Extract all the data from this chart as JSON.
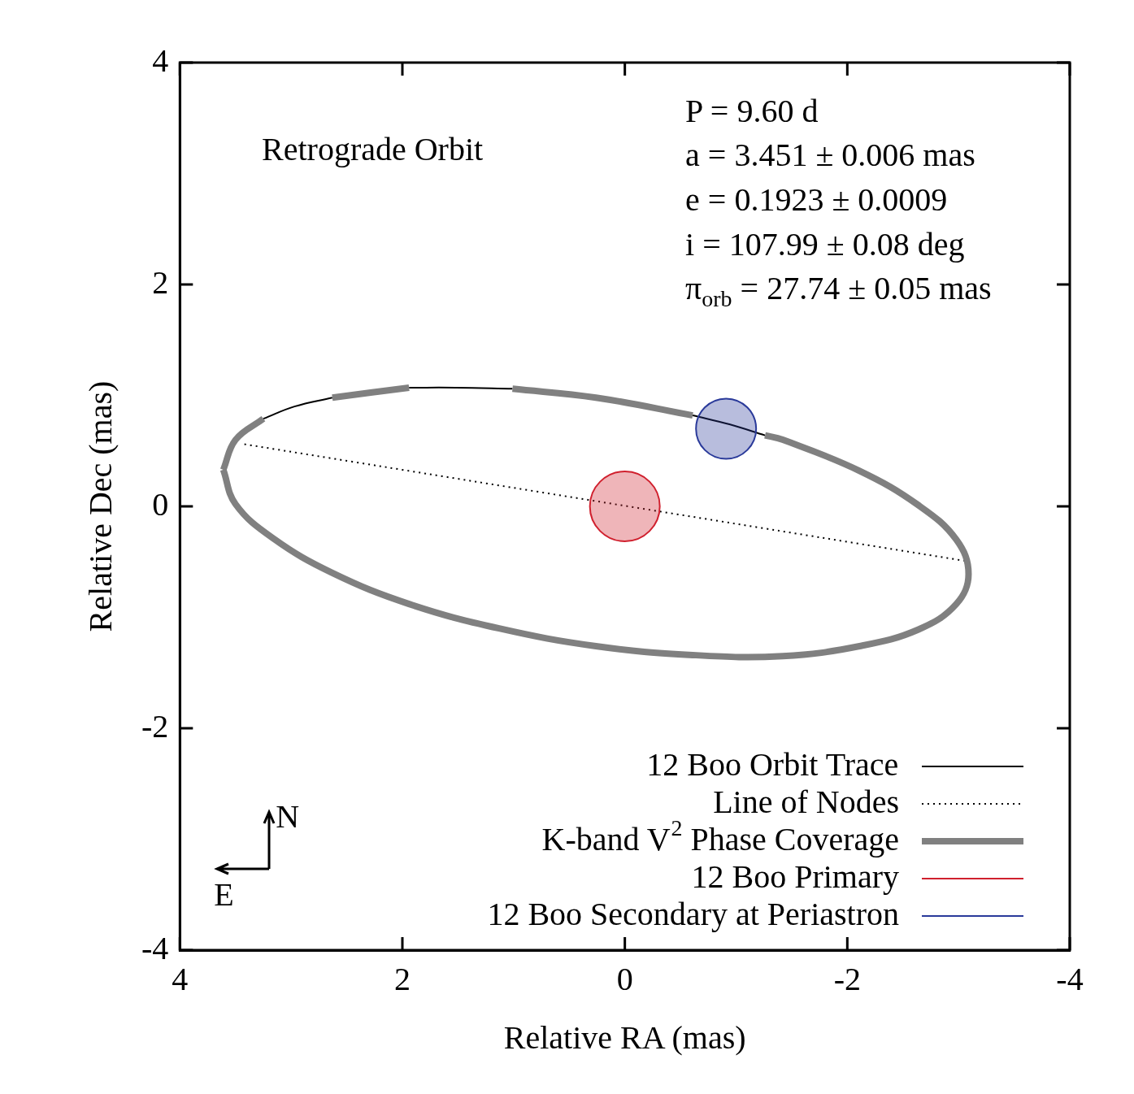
{
  "chart_data": {
    "type": "line",
    "xlabel": "Relative RA (mas)",
    "ylabel": "Relative Dec (mas)",
    "xlim": [
      4,
      -4
    ],
    "ylim": [
      -4,
      4
    ],
    "xticks": [
      4,
      2,
      0,
      -2,
      -4
    ],
    "yticks": [
      -4,
      -2,
      0,
      2,
      4
    ],
    "grid": false,
    "legend": "bottom right",
    "annotations": [
      "Retrograde Orbit",
      "P = 9.60 d",
      "a = 3.451 ± 0.006 mas",
      "e = 0.1923 ± 0.0009",
      "i = 107.99 ± 0.08 deg",
      "π$_{orb}$ = 27.74 ± 0.05 mas",
      "N",
      "E"
    ],
    "series": [
      {
        "name": "12 Boo Orbit Trace",
        "marker": "none",
        "line_style": "solid",
        "color": "#000000",
        "x": [
          3.25,
          2.97,
          2.63,
          2.3,
          1.94,
          1.52,
          1.01,
          0.2,
          -0.61,
          -0.94,
          -1.26
        ],
        "values": [
          0.79,
          0.9,
          0.98,
          null,
          1.07,
          1.07,
          1.06,
          null,
          0.82,
          0.74,
          0.64
        ]
      },
      {
        "name": "Line of Nodes",
        "marker": "none",
        "line_style": "dotted",
        "color": "#000000",
        "x": [
          3.42,
          -3.05
        ],
        "values": [
          0.56,
          -0.49
        ]
      },
      {
        "name": "K-band V$^{2}$ Phase Coverage",
        "marker": "none",
        "line_style": "solid",
        "color": "#808080",
        "x": [
          3.61,
          3.5,
          3.25,
          2.97,
          2.63,
          1.94,
          1.52,
          1.01,
          0.26,
          -0.61,
          -0.94,
          -1.26,
          -1.42,
          -2.11,
          -2.64,
          -2.98,
          -3.09,
          -2.98,
          -2.64,
          -2.11,
          -1.42,
          -0.61,
          0.26,
          1.13,
          1.94,
          2.63,
          3.16,
          3.5,
          3.61
        ],
        "values": [
          0.33,
          0.6,
          0.79,
          null,
          0.98,
          1.07,
          null,
          1.06,
          0.98,
          0.82,
          null,
          0.64,
          0.6,
          0.32,
          0.01,
          -0.3,
          -0.61,
          -0.88,
          -1.11,
          -1.26,
          -1.35,
          -1.34,
          -1.26,
          -1.1,
          -0.88,
          -0.6,
          -0.29,
          0.02,
          0.33
        ]
      },
      {
        "name": "12 Boo Primary",
        "type": "bubble",
        "marker": "circle",
        "color": "#d0202e",
        "x": [
          0
        ],
        "values": [
          0
        ],
        "sizes": [
          1
        ]
      },
      {
        "name": "12 Boo Secondary at Periastron",
        "type": "bubble",
        "marker": "circle",
        "color": "#2a3a9a",
        "x": [
          -0.91
        ],
        "values": [
          0.7
        ],
        "sizes": [
          0.74
        ]
      }
    ]
  }
}
